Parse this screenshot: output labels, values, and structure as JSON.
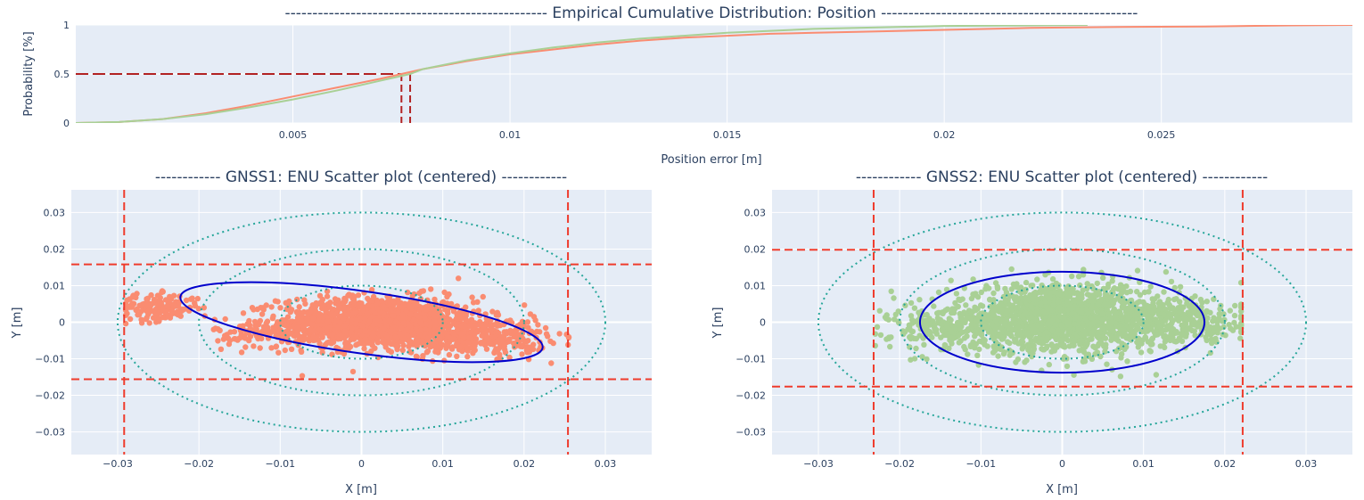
{
  "chart_data": [
    {
      "type": "line",
      "title": "------------------------------------------------  Empirical Cumulative Distribution: Position  -----------------------------------------------",
      "xlabel": "Position error [m]",
      "ylabel": "Probability [%]",
      "xlim": [
        0.0,
        0.0294
      ],
      "ylim": [
        0,
        1
      ],
      "xticks": [
        "0.005",
        "0.01",
        "0.015",
        "0.02",
        "0.025"
      ],
      "xtick_values": [
        0.005,
        0.01,
        0.015,
        0.02,
        0.025
      ],
      "yticks": [
        "0",
        "0.5",
        "1"
      ],
      "ytick_values": [
        0,
        0.5,
        1
      ],
      "series": [
        {
          "color": "#fa8c71",
          "x": [
            0.0,
            0.001,
            0.002,
            0.003,
            0.004,
            0.005,
            0.006,
            0.007,
            0.0075,
            0.008,
            0.009,
            0.01,
            0.011,
            0.012,
            0.013,
            0.014,
            0.015,
            0.016,
            0.017,
            0.018,
            0.02,
            0.022,
            0.024,
            0.026,
            0.028,
            0.0294
          ],
          "y": [
            0.0,
            0.01,
            0.04,
            0.1,
            0.18,
            0.27,
            0.36,
            0.45,
            0.5,
            0.55,
            0.63,
            0.7,
            0.75,
            0.8,
            0.84,
            0.87,
            0.89,
            0.91,
            0.92,
            0.93,
            0.95,
            0.97,
            0.98,
            0.985,
            0.995,
            1.0
          ]
        },
        {
          "color": "#a9d095",
          "x": [
            0.0,
            0.001,
            0.002,
            0.003,
            0.004,
            0.005,
            0.006,
            0.007,
            0.0077,
            0.008,
            0.009,
            0.01,
            0.011,
            0.012,
            0.013,
            0.014,
            0.015,
            0.016,
            0.017,
            0.018,
            0.02,
            0.022,
            0.0233
          ],
          "y": [
            0.0,
            0.01,
            0.04,
            0.09,
            0.16,
            0.24,
            0.33,
            0.43,
            0.5,
            0.55,
            0.64,
            0.71,
            0.77,
            0.82,
            0.86,
            0.89,
            0.92,
            0.94,
            0.96,
            0.97,
            0.99,
            0.995,
            1.0
          ]
        }
      ],
      "median_markers": [
        {
          "color": "#b22222",
          "x": 0.0075,
          "y": 0.5
        },
        {
          "color": "#b22222",
          "x": 0.0077,
          "y": 0.5
        }
      ],
      "grid": true
    },
    {
      "type": "scatter",
      "title": "------------ GNSS1: ENU Scatter plot (centered) ------------",
      "xlabel": "X [m]",
      "ylabel": "Y [m]",
      "xlim": [
        -0.0357,
        0.0357
      ],
      "ylim": [
        -0.0362,
        0.0362
      ],
      "xticks": [
        "−0.03",
        "−0.02",
        "−0.01",
        "0",
        "0.01",
        "0.02",
        "0.03"
      ],
      "xtick_values": [
        -0.03,
        -0.02,
        -0.01,
        0,
        0.01,
        0.02,
        0.03
      ],
      "yticks": [
        "−0.03",
        "−0.02",
        "−0.01",
        "0",
        "0.01",
        "0.02",
        "0.03"
      ],
      "ytick_values": [
        -0.03,
        -0.02,
        -0.01,
        0,
        0.01,
        0.02,
        0.03
      ],
      "point_color": "#fa8c71",
      "point_clusters": [
        {
          "cx": 0.002,
          "cy": 0.0,
          "sx": 0.006,
          "sy": 0.0035,
          "n": 1300
        },
        {
          "cx": -0.025,
          "cy": 0.004,
          "sx": 0.0025,
          "sy": 0.0018,
          "n": 160
        },
        {
          "cx": 0.014,
          "cy": -0.004,
          "sx": 0.0045,
          "sy": 0.0025,
          "n": 350
        },
        {
          "cx": -0.01,
          "cy": -0.003,
          "sx": 0.004,
          "sy": 0.002,
          "n": 150
        }
      ],
      "point_range_x": [
        -0.029,
        0.0255
      ],
      "point_range_y": [
        -0.016,
        0.016
      ],
      "ellipse": {
        "cx": 0.0,
        "cy": 0.0,
        "rx": 0.0225,
        "ry": 0.0085,
        "angle_deg": -8,
        "color": "#0000cc"
      },
      "circles": {
        "cx": 0.0,
        "cy": 0.0,
        "rx": [
          0.01,
          0.02,
          0.03
        ],
        "ry": [
          0.01,
          0.02,
          0.03
        ],
        "color": "#26a69a"
      },
      "limit_lines": {
        "x": [
          -0.0292,
          0.0254
        ],
        "y": [
          0.0158,
          -0.0156
        ],
        "color": "#ef3b2c"
      },
      "grid": true
    },
    {
      "type": "scatter",
      "title": "------------ GNSS2: ENU Scatter plot (centered) ------------",
      "xlabel": "X [m]",
      "ylabel": "Y [m]",
      "xlim": [
        -0.0357,
        0.0357
      ],
      "ylim": [
        -0.0362,
        0.0362
      ],
      "xticks": [
        "−0.03",
        "−0.02",
        "−0.01",
        "0",
        "0.01",
        "0.02",
        "0.03"
      ],
      "xtick_values": [
        -0.03,
        -0.02,
        -0.01,
        0,
        0.01,
        0.02,
        0.03
      ],
      "yticks": [
        "−0.03",
        "−0.02",
        "−0.01",
        "0",
        "0.01",
        "0.02",
        "0.03"
      ],
      "ytick_values": [
        -0.03,
        -0.02,
        -0.01,
        0,
        0.01,
        0.02,
        0.03
      ],
      "point_color": "#a9d095",
      "point_clusters": [
        {
          "cx": 0.0,
          "cy": 0.001,
          "sx": 0.007,
          "sy": 0.0045,
          "n": 1500
        },
        {
          "cx": -0.013,
          "cy": -0.002,
          "sx": 0.004,
          "sy": 0.003,
          "n": 200
        },
        {
          "cx": 0.015,
          "cy": 0.0,
          "sx": 0.004,
          "sy": 0.003,
          "n": 250
        }
      ],
      "point_range_x": [
        -0.023,
        0.022
      ],
      "point_range_y": [
        -0.018,
        0.02
      ],
      "ellipse": {
        "cx": 0.0,
        "cy": 0.0,
        "rx": 0.0175,
        "ry": 0.0138,
        "angle_deg": 0,
        "color": "#0000cc"
      },
      "circles": {
        "cx": 0.0,
        "cy": 0.0,
        "rx": [
          0.01,
          0.02,
          0.03
        ],
        "ry": [
          0.01,
          0.02,
          0.03
        ],
        "color": "#26a69a"
      },
      "limit_lines": {
        "x": [
          -0.0232,
          0.0222
        ],
        "y": [
          0.0198,
          -0.0176
        ],
        "color": "#ef3b2c"
      },
      "grid": true
    }
  ]
}
